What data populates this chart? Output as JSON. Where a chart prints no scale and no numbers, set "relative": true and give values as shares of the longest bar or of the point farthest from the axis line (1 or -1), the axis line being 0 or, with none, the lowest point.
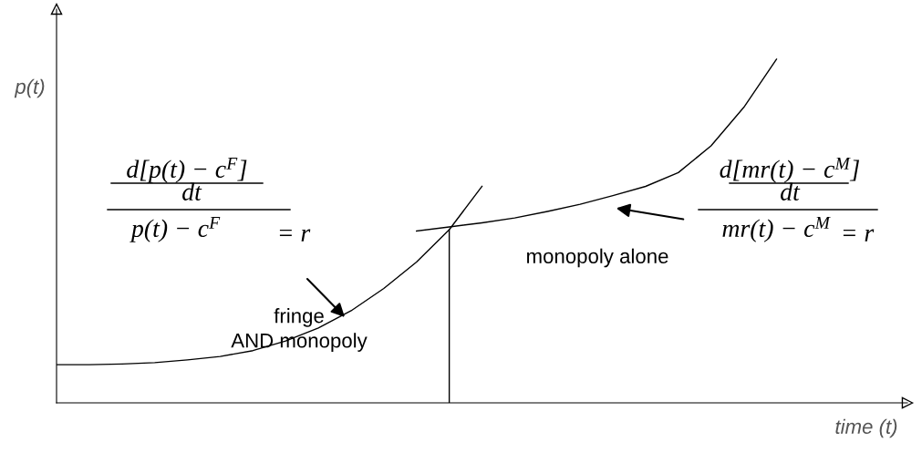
{
  "chart_data": {
    "type": "line",
    "relative": true,
    "xlabel": "time (t)",
    "ylabel": "p(t)",
    "categories": [
      null,
      null,
      null,
      null,
      null,
      null,
      null,
      null,
      null,
      null,
      null,
      null,
      null,
      null,
      null,
      null,
      null,
      null,
      null,
      null,
      null,
      null,
      null,
      null,
      null,
      null,
      null
    ],
    "series": [
      {
        "color": "#000000",
        "values": [
          0.111,
          0.111,
          0.113,
          0.117,
          0.125,
          0.135,
          0.152,
          0.18,
          0.218,
          0.268,
          0.333,
          0.41,
          0.504,
          0.63,
          null,
          null,
          null,
          null,
          null,
          null,
          null,
          null,
          null,
          null,
          null,
          null,
          null
        ]
      },
      {
        "color": "#000000",
        "values": [
          null,
          null,
          null,
          null,
          null,
          null,
          null,
          null,
          null,
          null,
          null,
          0.5,
          0.512,
          0.524,
          0.538,
          0.557,
          0.578,
          0.603,
          0.63,
          0.67,
          0.748,
          0.86,
          1.0,
          null,
          null,
          null,
          null
        ]
      }
    ],
    "annotations": [
      "d[p(t) − c$^{F}$]",
      "dt",
      "p(t) − c$^{F}$",
      "= r",
      "d[mr(t) − c$^{M}$]",
      "dt",
      "mr(t) − c$^{M}$",
      "= r",
      "monopoly alone",
      "fringe\nAND monopoly"
    ]
  }
}
